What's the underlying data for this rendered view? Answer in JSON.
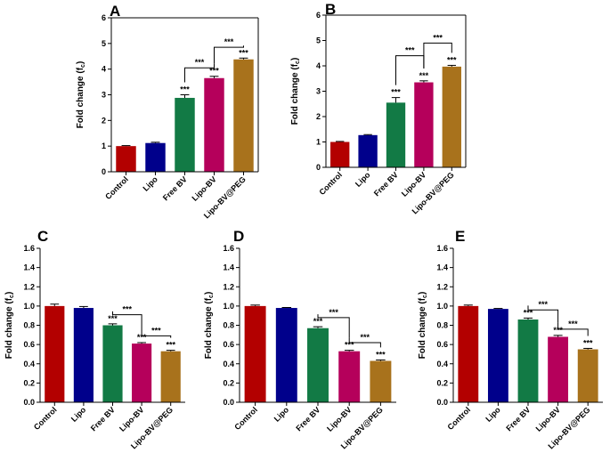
{
  "chart_data": [
    {
      "type": "bar",
      "panel": "A",
      "ylabel": "Fold change (fc)",
      "ylabel_main": "Fold change (f",
      "ylabel_sub": "c",
      "ylabel_end": ")",
      "ylim": [
        0,
        6
      ],
      "yticks": [
        "0",
        "1",
        "2",
        "3",
        "4",
        "5",
        "6"
      ],
      "categories": [
        "Control",
        "Lipo",
        "Free BV",
        "Lipo-BV",
        "Lipo-BV@PEG"
      ],
      "values": [
        1.0,
        1.12,
        2.88,
        3.65,
        4.38
      ],
      "errors": [
        0.02,
        0.03,
        0.12,
        0.07,
        0.05
      ],
      "colors": [
        "#b30000",
        "#00008b",
        "#127a45",
        "#b5005b",
        "#a8721c"
      ],
      "bar_labels": [
        "",
        "",
        "***",
        "***",
        "***"
      ],
      "brackets": [
        {
          "from": 2,
          "to": 3,
          "y": 4.05,
          "label": "***"
        },
        {
          "from": 3,
          "to": 4,
          "y": 4.85,
          "label": "***"
        }
      ]
    },
    {
      "type": "bar",
      "panel": "B",
      "ylabel": "Fold change (fc)",
      "ylabel_main": "Fold change (f",
      "ylabel_sub": "c",
      "ylabel_end": ")",
      "ylim": [
        0,
        6
      ],
      "yticks": [
        "0",
        "1",
        "2",
        "3",
        "4",
        "5",
        "6"
      ],
      "categories": [
        "Control",
        "Lipo",
        "Free BV",
        "Lipo-BV",
        "Lipo-BV@PEG"
      ],
      "values": [
        1.0,
        1.27,
        2.55,
        3.35,
        3.97
      ],
      "errors": [
        0.02,
        0.02,
        0.2,
        0.06,
        0.05
      ],
      "colors": [
        "#b30000",
        "#00008b",
        "#127a45",
        "#b5005b",
        "#a8721c"
      ],
      "bar_labels": [
        "",
        "",
        "***",
        "***",
        "***"
      ],
      "brackets": [
        {
          "from": 2,
          "to": 3,
          "y": 4.4,
          "label": "***"
        },
        {
          "from": 3,
          "to": 4,
          "y": 4.9,
          "label": "***"
        }
      ]
    },
    {
      "type": "bar",
      "panel": "C",
      "ylabel": "Fold change (fc)",
      "ylabel_main": "Fold change (f",
      "ylabel_sub": "c",
      "ylabel_end": ")",
      "ylim": [
        0,
        1.6
      ],
      "yticks": [
        "0.0",
        "0.2",
        "0.4",
        "0.6",
        "0.8",
        "1.0",
        "1.2",
        "1.4",
        "1.6"
      ],
      "categories": [
        "Control",
        "Lipo",
        "Free BV",
        "Lipo-BV",
        "Lipo-BV@PEG"
      ],
      "values": [
        1.0,
        0.98,
        0.8,
        0.61,
        0.53
      ],
      "errors": [
        0.02,
        0.015,
        0.015,
        0.01,
        0.01
      ],
      "colors": [
        "#b30000",
        "#00008b",
        "#127a45",
        "#b5005b",
        "#a8721c"
      ],
      "bar_labels": [
        "",
        "",
        "***",
        "***",
        "***"
      ],
      "brackets": [
        {
          "from": 2,
          "to": 3,
          "y": 0.91,
          "label": "***"
        },
        {
          "from": 3,
          "to": 4,
          "y": 0.69,
          "label": "***"
        }
      ]
    },
    {
      "type": "bar",
      "panel": "D",
      "ylabel": "Fold change (fc)",
      "ylabel_main": "Fold change (f",
      "ylabel_sub": "c",
      "ylabel_end": ")",
      "ylim": [
        0,
        1.6
      ],
      "yticks": [
        "0.0",
        "0.2",
        "0.4",
        "0.6",
        "0.8",
        "1.0",
        "1.2",
        "1.4",
        "1.6"
      ],
      "categories": [
        "Control",
        "Lipo",
        "Free BV",
        "Lipo-BV",
        "Lipo-BV@PEG"
      ],
      "values": [
        1.0,
        0.98,
        0.77,
        0.53,
        0.43
      ],
      "errors": [
        0.01,
        0.005,
        0.015,
        0.01,
        0.01
      ],
      "colors": [
        "#b30000",
        "#00008b",
        "#127a45",
        "#b5005b",
        "#a8721c"
      ],
      "bar_labels": [
        "",
        "",
        "***",
        "***",
        "***"
      ],
      "brackets": [
        {
          "from": 2,
          "to": 3,
          "y": 0.88,
          "label": "***"
        },
        {
          "from": 3,
          "to": 4,
          "y": 0.62,
          "label": "***"
        }
      ]
    },
    {
      "type": "bar",
      "panel": "E",
      "ylabel": "Fold change (fc)",
      "ylabel_main": "Fold change (f",
      "ylabel_sub": "c",
      "ylabel_end": ")",
      "ylim": [
        0,
        1.6
      ],
      "yticks": [
        "0.0",
        "0.2",
        "0.4",
        "0.6",
        "0.8",
        "1.0",
        "1.2",
        "1.4",
        "1.6"
      ],
      "categories": [
        "Control",
        "Lipo",
        "Free BV",
        "Lipo-BV",
        "Lipo-BV@PEG"
      ],
      "values": [
        1.0,
        0.97,
        0.86,
        0.68,
        0.55
      ],
      "errors": [
        0.01,
        0.005,
        0.015,
        0.015,
        0.01
      ],
      "colors": [
        "#b30000",
        "#00008b",
        "#127a45",
        "#b5005b",
        "#a8721c"
      ],
      "bar_labels": [
        "",
        "",
        "***",
        "***",
        "***"
      ],
      "brackets": [
        {
          "from": 2,
          "to": 3,
          "y": 0.96,
          "label": "***"
        },
        {
          "from": 3,
          "to": 4,
          "y": 0.76,
          "label": "***"
        }
      ]
    }
  ]
}
